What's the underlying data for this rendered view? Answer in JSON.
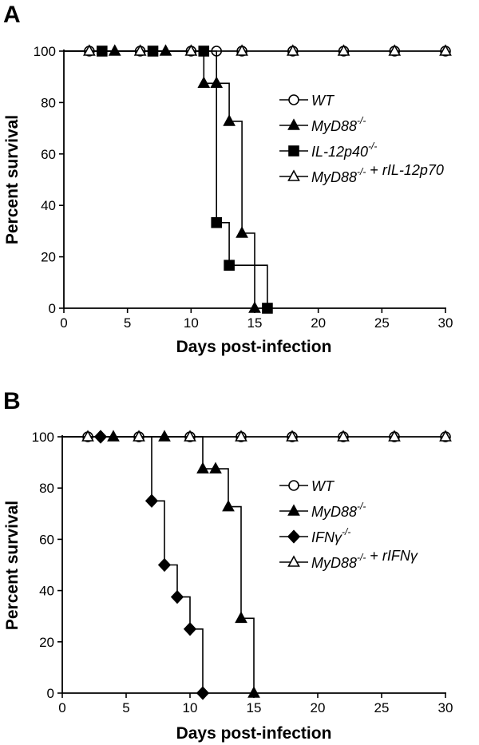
{
  "chart_data": [
    {
      "panel": "A",
      "type": "line",
      "subtype": "kaplan-meier",
      "xlabel": "Days post-infection",
      "ylabel": "Percent survival",
      "xlim": [
        0,
        30
      ],
      "ylim": [
        0,
        100
      ],
      "xticks": [
        0,
        5,
        10,
        15,
        20,
        25,
        30
      ],
      "yticks": [
        0,
        20,
        40,
        60,
        80,
        100
      ],
      "grid": false,
      "legend_position": "right",
      "series": [
        {
          "name": "WT",
          "legend_parts": [
            {
              "text": "WT"
            }
          ],
          "marker": "circle-open",
          "steps": [
            [
              0,
              100
            ],
            [
              30,
              100
            ]
          ],
          "markers": [
            [
              2,
              100
            ],
            [
              6,
              100
            ],
            [
              10,
              100
            ],
            [
              12,
              100
            ],
            [
              14,
              100
            ],
            [
              18,
              100
            ],
            [
              22,
              100
            ],
            [
              26,
              100
            ],
            [
              30,
              100
            ]
          ]
        },
        {
          "name": "MyD88-/-",
          "legend_parts": [
            {
              "text": "MyD88"
            },
            {
              "text": "-/-",
              "sup": true
            }
          ],
          "marker": "triangle-filled",
          "steps": [
            [
              0,
              100
            ],
            [
              11,
              100
            ],
            [
              11,
              87.5
            ],
            [
              13,
              87.5
            ],
            [
              13,
              72.7
            ],
            [
              14,
              72.7
            ],
            [
              14,
              29.2
            ],
            [
              15,
              29.2
            ],
            [
              15,
              0
            ]
          ],
          "markers": [
            [
              4,
              100
            ],
            [
              8,
              100
            ],
            [
              11,
              87.5
            ],
            [
              12,
              87.5
            ],
            [
              13,
              72.7
            ],
            [
              14,
              29.2
            ],
            [
              15,
              0
            ]
          ]
        },
        {
          "name": "IL-12p40-/-",
          "legend_parts": [
            {
              "text": "IL-12p40"
            },
            {
              "text": "-/-",
              "sup": true
            }
          ],
          "marker": "square-filled",
          "steps": [
            [
              0,
              100
            ],
            [
              12,
              100
            ],
            [
              12,
              33.3
            ],
            [
              13,
              33.3
            ],
            [
              13,
              16.7
            ],
            [
              16,
              16.7
            ],
            [
              16,
              0
            ]
          ],
          "markers": [
            [
              3,
              100
            ],
            [
              7,
              100
            ],
            [
              11,
              100
            ],
            [
              12,
              33.3
            ],
            [
              13,
              16.7
            ],
            [
              16,
              0
            ]
          ]
        },
        {
          "name": "MyD88-/- + rIL-12p70",
          "legend_parts": [
            {
              "text": "MyD88"
            },
            {
              "text": "-/-",
              "sup": true
            },
            {
              "text": " + ",
              "upright": true
            },
            {
              "text": "rIL-12p70"
            }
          ],
          "marker": "triangle-open",
          "steps": [
            [
              0,
              100
            ],
            [
              30,
              100
            ]
          ],
          "markers": [
            [
              2,
              100
            ],
            [
              6,
              100
            ],
            [
              10,
              100
            ],
            [
              14,
              100
            ],
            [
              18,
              100
            ],
            [
              22,
              100
            ],
            [
              26,
              100
            ],
            [
              30,
              100
            ]
          ]
        }
      ]
    },
    {
      "panel": "B",
      "type": "line",
      "subtype": "kaplan-meier",
      "xlabel": "Days post-infection",
      "ylabel": "Percent survival",
      "xlim": [
        0,
        30
      ],
      "ylim": [
        0,
        100
      ],
      "xticks": [
        0,
        5,
        10,
        15,
        20,
        25,
        30
      ],
      "yticks": [
        0,
        20,
        40,
        60,
        80,
        100
      ],
      "grid": false,
      "legend_position": "right",
      "series": [
        {
          "name": "WT",
          "legend_parts": [
            {
              "text": "WT"
            }
          ],
          "marker": "circle-open",
          "steps": [
            [
              0,
              100
            ],
            [
              30,
              100
            ]
          ],
          "markers": [
            [
              2,
              100
            ],
            [
              6,
              100
            ],
            [
              10,
              100
            ],
            [
              14,
              100
            ],
            [
              18,
              100
            ],
            [
              22,
              100
            ],
            [
              26,
              100
            ],
            [
              30,
              100
            ]
          ]
        },
        {
          "name": "MyD88-/-",
          "legend_parts": [
            {
              "text": "MyD88"
            },
            {
              "text": "-/-",
              "sup": true
            }
          ],
          "marker": "triangle-filled",
          "steps": [
            [
              0,
              100
            ],
            [
              11,
              100
            ],
            [
              11,
              87.5
            ],
            [
              13,
              87.5
            ],
            [
              13,
              72.7
            ],
            [
              14,
              72.7
            ],
            [
              14,
              29.2
            ],
            [
              15,
              29.2
            ],
            [
              15,
              0
            ]
          ],
          "markers": [
            [
              4,
              100
            ],
            [
              8,
              100
            ],
            [
              11,
              87.5
            ],
            [
              12,
              87.5
            ],
            [
              13,
              72.7
            ],
            [
              14,
              29.2
            ],
            [
              15,
              0
            ]
          ]
        },
        {
          "name": "IFNγ-/-",
          "legend_parts": [
            {
              "text": "IFNγ"
            },
            {
              "text": "-/-",
              "sup": true
            }
          ],
          "marker": "diamond-filled",
          "steps": [
            [
              0,
              100
            ],
            [
              7,
              100
            ],
            [
              7,
              75
            ],
            [
              8,
              75
            ],
            [
              8,
              50
            ],
            [
              9,
              50
            ],
            [
              9,
              37.5
            ],
            [
              10,
              37.5
            ],
            [
              10,
              25
            ],
            [
              11,
              25
            ],
            [
              11,
              0
            ]
          ],
          "markers": [
            [
              3,
              100
            ],
            [
              7,
              75
            ],
            [
              8,
              50
            ],
            [
              9,
              37.5
            ],
            [
              10,
              25
            ],
            [
              11,
              0
            ]
          ]
        },
        {
          "name": "MyD88-/- + rIFNγ",
          "legend_parts": [
            {
              "text": "MyD88"
            },
            {
              "text": "-/-",
              "sup": true
            },
            {
              "text": " + ",
              "upright": true
            },
            {
              "text": "rIFNγ"
            }
          ],
          "marker": "triangle-open",
          "steps": [
            [
              0,
              100
            ],
            [
              30,
              100
            ]
          ],
          "markers": [
            [
              2,
              100
            ],
            [
              6,
              100
            ],
            [
              10,
              100
            ],
            [
              14,
              100
            ],
            [
              18,
              100
            ],
            [
              22,
              100
            ],
            [
              26,
              100
            ],
            [
              30,
              100
            ]
          ]
        }
      ]
    }
  ]
}
